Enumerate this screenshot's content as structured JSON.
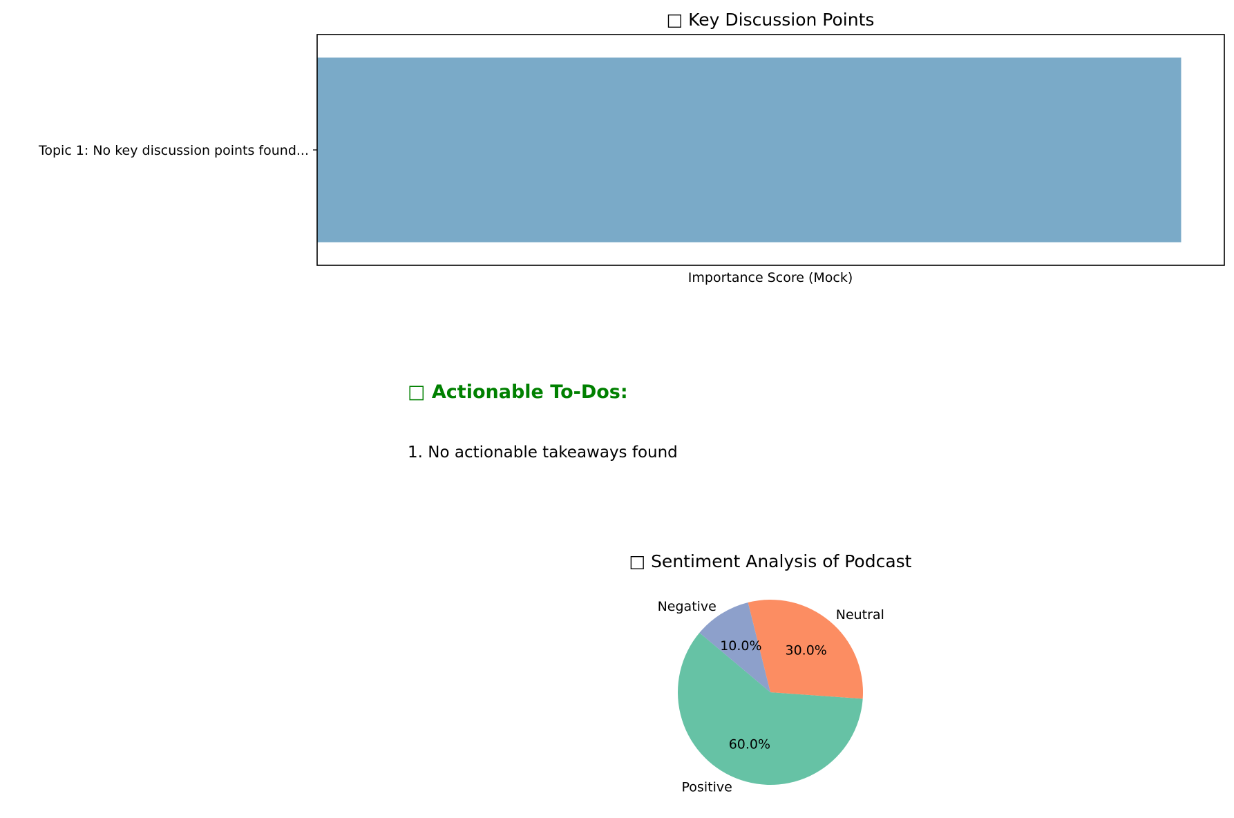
{
  "chart_data": [
    {
      "type": "bar",
      "orientation": "horizontal",
      "title": "□ Key Discussion Points",
      "categories": [
        "Topic 1: No key discussion points found..."
      ],
      "values": [
        1
      ],
      "xlabel": "Importance Score (Mock)",
      "ylabel": "",
      "xlim": [
        0,
        1.05
      ],
      "x_ticks_visible": false,
      "grid": false,
      "bar_color": "#7aaac8"
    },
    {
      "type": "pie",
      "title": "□ Sentiment Analysis of Podcast",
      "labels": [
        "Positive",
        "Neutral",
        "Negative"
      ],
      "values": [
        60,
        30,
        10
      ],
      "autopct": [
        "60.0%",
        "30.0%",
        "10.0%"
      ],
      "colors": [
        "#66c2a5",
        "#fc8d62",
        "#8da0cb"
      ],
      "start_angle_deg": 140,
      "direction": "counterclockwise"
    }
  ],
  "todos": {
    "heading": "□ Actionable To-Dos:",
    "items": [
      "1. No actionable takeaways found"
    ]
  }
}
